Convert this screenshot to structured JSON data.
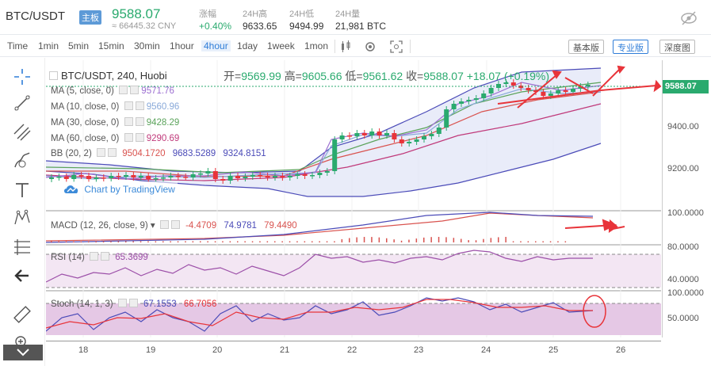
{
  "header": {
    "pair": "BTC/USDT",
    "badge": "主板",
    "price": "9588.07",
    "cny": "≈ 66445.32 CNY",
    "stats": [
      {
        "label": "涨幅",
        "value": "+0.40%"
      },
      {
        "label": "24H高",
        "value": "9633.65"
      },
      {
        "label": "24H低",
        "value": "9494.99"
      },
      {
        "label": "24H量",
        "value": "21,981 BTC"
      }
    ]
  },
  "toolbar": {
    "intervals": [
      "Time",
      "1min",
      "5min",
      "15min",
      "30min",
      "1hour",
      "4hour",
      "1day",
      "1week",
      "1mon"
    ],
    "active_interval": "4hour",
    "views": [
      "基本版",
      "专业版",
      "深度图"
    ],
    "active_view": "专业版"
  },
  "chart": {
    "title": "BTC/USDT, 240, Huobi",
    "ohlc": {
      "open_label": "开=",
      "open": "9569.99",
      "high_label": "高=",
      "high": "9605.66",
      "low_label": "低=",
      "low": "9561.62",
      "close_label": "收=",
      "close": "9588.07",
      "change": "+18.07 (+0.19%)"
    },
    "indicators": [
      {
        "label": "MA (5, close, 0)",
        "value": "9571.76",
        "color": "#9c6fd1"
      },
      {
        "label": "MA (10, close, 0)",
        "value": "9560.96",
        "color": "#89a9d9"
      },
      {
        "label": "MA (30, close, 0)",
        "value": "9428.29",
        "color": "#5ba35b"
      },
      {
        "label": "MA (60, close, 0)",
        "value": "9290.69",
        "color": "#c0397a"
      }
    ],
    "bb": {
      "label": "BB (20, 2)",
      "values": [
        "9504.1720",
        "9683.5289",
        "9324.8151"
      ]
    },
    "watermark": "Chart by TradingView",
    "macd": {
      "label": "MACD (12, 26, close, 9)",
      "values": [
        "-4.4709",
        "74.9781",
        "79.4490"
      ]
    },
    "rsi": {
      "label": "RSI (14)",
      "value": "65.3699"
    },
    "stoch": {
      "label": "Stoch (14, 1, 3)",
      "values": [
        "67.1553",
        "66.7056"
      ]
    },
    "price_tag": "9588.07",
    "y_labels_main": [
      "9400.00",
      "9200.00"
    ],
    "y_labels_macd": [
      "100.0000"
    ],
    "y_labels_rsi": [
      "80.0000",
      "40.0000"
    ],
    "y_labels_stoch": [
      "100.0000",
      "50.0000"
    ],
    "x_labels": [
      "18",
      "19",
      "20",
      "21",
      "22",
      "23",
      "24",
      "25",
      "26"
    ]
  }
}
